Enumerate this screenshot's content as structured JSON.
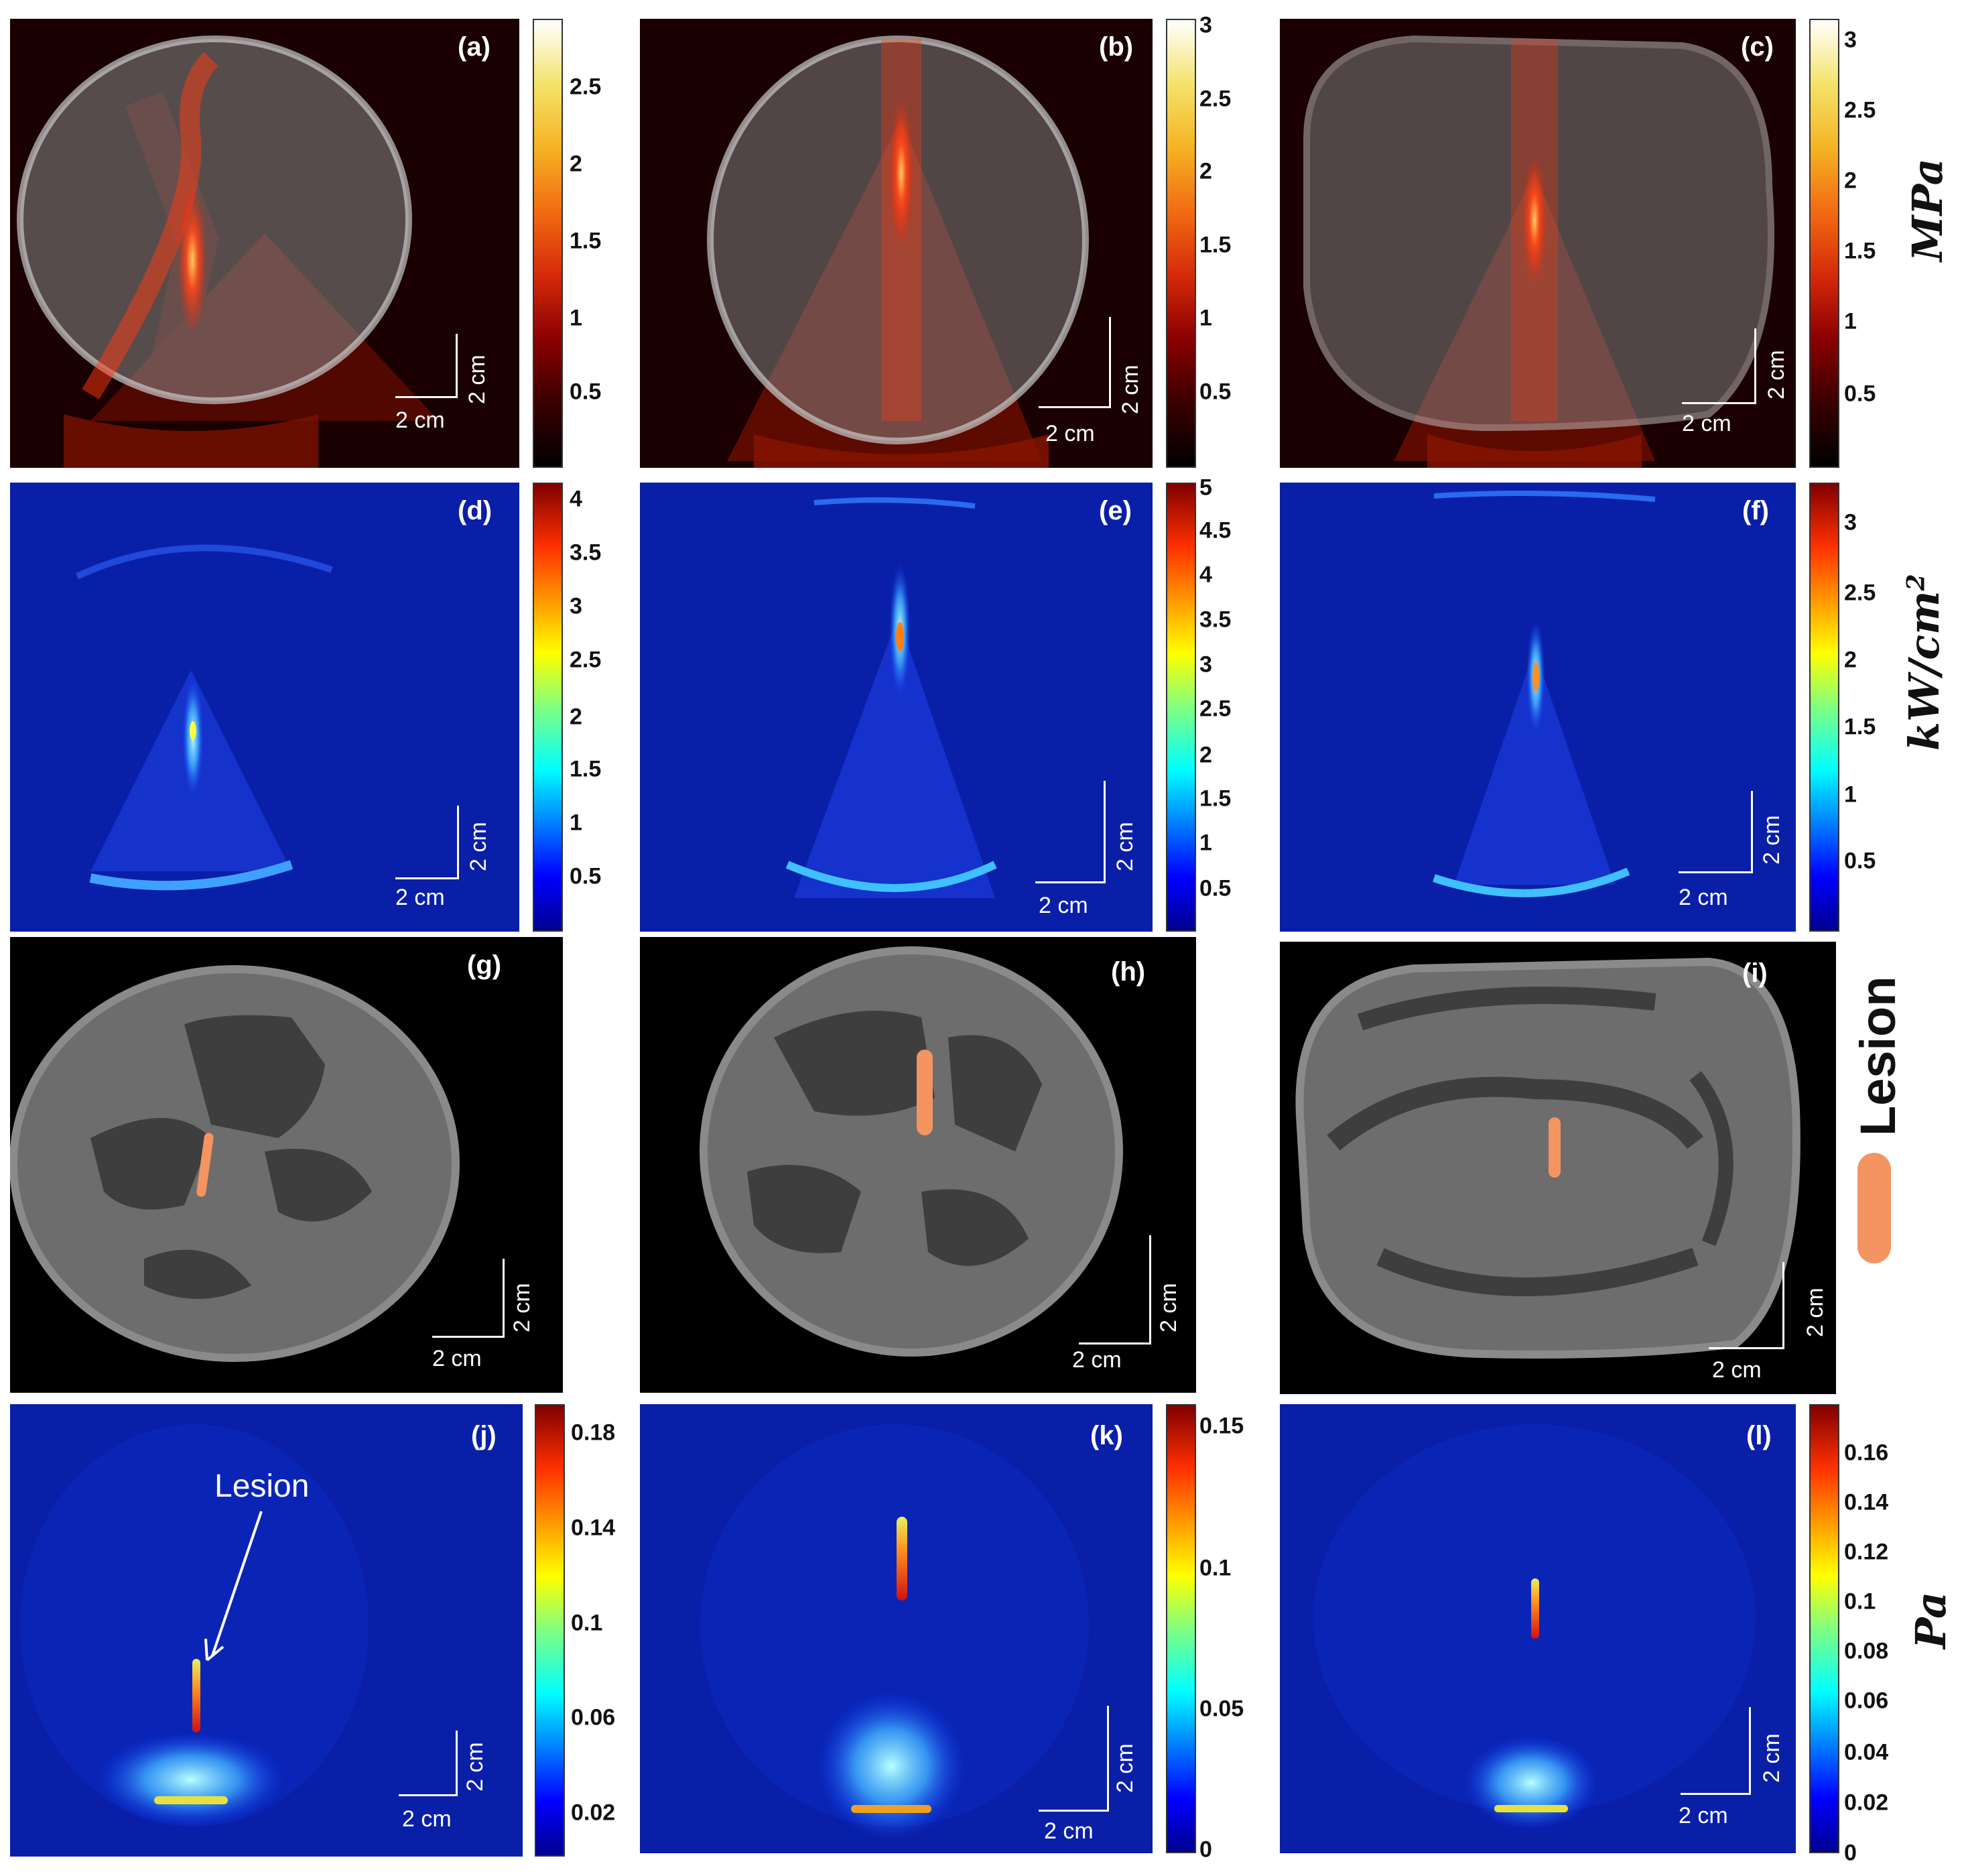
{
  "panel_labels": [
    "(a)",
    "(b)",
    "(c)",
    "(d)",
    "(e)",
    "(f)",
    "(g)",
    "(h)",
    "(i)",
    "(j)",
    "(k)",
    "(l)"
  ],
  "scale_bar": {
    "x_label": "2 cm",
    "y_label": "2 cm"
  },
  "colorbars": {
    "a": [
      "2.5",
      "2",
      "1.5",
      "1",
      "0.5"
    ],
    "b": [
      "3",
      "2.5",
      "2",
      "1.5",
      "1",
      "0.5"
    ],
    "c": [
      "3",
      "2.5",
      "2",
      "1.5",
      "1",
      "0.5"
    ],
    "d": [
      "4",
      "3.5",
      "3",
      "2.5",
      "2",
      "1.5",
      "1",
      "0.5"
    ],
    "e": [
      "5",
      "4.5",
      "4",
      "3.5",
      "3",
      "2.5",
      "2",
      "1.5",
      "1",
      "0.5"
    ],
    "f": [
      "3",
      "2.5",
      "2",
      "1.5",
      "1",
      "0.5"
    ],
    "j": [
      "0.18",
      "0.14",
      "0.1",
      "0.06",
      "0.02"
    ],
    "k": [
      "0.15",
      "0.1",
      "0.05",
      "0"
    ],
    "l": [
      "0.16",
      "0.14",
      "0.12",
      "0.1",
      "0.08",
      "0.06",
      "0.04",
      "0.02",
      "0"
    ]
  },
  "colormaps": {
    "hot": [
      "#000000",
      "#3a0000",
      "#8b0000",
      "#d62a0a",
      "#f26b12",
      "#f5b324",
      "#f4e36a",
      "#ffffff"
    ],
    "jet": [
      "#00008f",
      "#0000ff",
      "#0080ff",
      "#00ffff",
      "#80ff80",
      "#ffff00",
      "#ff8000",
      "#ff0000",
      "#800000"
    ]
  },
  "row_units": {
    "row1": "MPa",
    "row2": "kW/cm",
    "row2_exp": "2",
    "row3": "Lesion",
    "row4": "Pa"
  },
  "annotation": {
    "text": "Lesion"
  },
  "colors": {
    "lesion": "#f49461",
    "tissue": "#6d6d6d",
    "fat": "#3e3e3e",
    "background_jet": "#0a1fa8"
  }
}
